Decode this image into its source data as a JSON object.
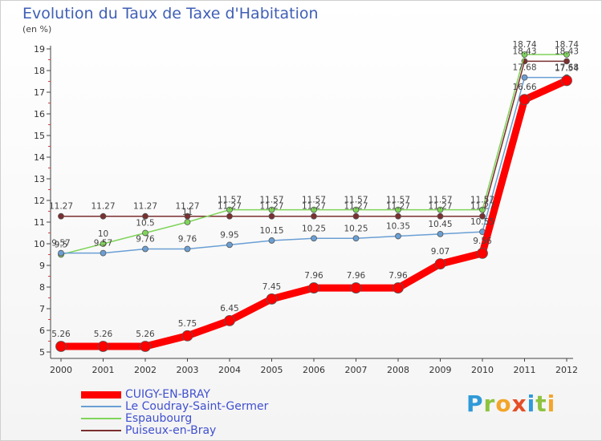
{
  "header": {
    "title": "Evolution du Taux de Taxe d'Habitation",
    "unit": "(en %)"
  },
  "brand": {
    "logo_letters": [
      "P",
      "r",
      "o",
      "x",
      "i",
      "t",
      "i"
    ],
    "logo_colors": [
      "#2f9ad8",
      "#8dc33e",
      "#f3a52a",
      "#e44f26",
      "#2f9ad8",
      "#8dc33e",
      "#f3a52a"
    ]
  },
  "chart_data": {
    "type": "line",
    "title": "Evolution du Taux de Taxe d'Habitation",
    "ylabel": "(en %)",
    "xlabel": "",
    "ylim": [
      5,
      19
    ],
    "yticks": [
      5,
      6,
      7,
      8,
      9,
      10,
      11,
      12,
      13,
      14,
      15,
      16,
      17,
      18,
      19
    ],
    "grid": false,
    "legend_position": "bottom-left",
    "x": [
      "2000",
      "2001",
      "2002",
      "2003",
      "2004",
      "2005",
      "2006",
      "2007",
      "2008",
      "2009",
      "2010",
      "2011",
      "2012"
    ],
    "series": [
      {
        "name": "Puiseux-en-Bray",
        "color": "#7b2f2f",
        "values": [
          11.27,
          11.27,
          11.27,
          11.27,
          11.27,
          11.27,
          11.27,
          11.27,
          11.27,
          11.27,
          11.27,
          18.43,
          18.43
        ],
        "labels": [
          "11.27",
          "11.27",
          "11.27",
          "11.27",
          "11.27",
          "11.27",
          "11.27",
          "11.27",
          "11.27",
          "11.27",
          "11.27",
          "18.43",
          "18.43"
        ]
      },
      {
        "name": "Espaubourg",
        "color": "#7fd45a",
        "values": [
          9.5,
          10,
          10.5,
          11,
          11.57,
          11.57,
          11.57,
          11.57,
          11.57,
          11.57,
          11.57,
          18.74,
          18.74
        ],
        "labels": [
          "9.5",
          "10",
          "10.5",
          "11",
          "11.57",
          "11.57",
          "11.57",
          "11.57",
          "11.57",
          "11.57",
          "11.57",
          "18.74",
          "18.74"
        ]
      },
      {
        "name": "Le Coudray-Saint-Germer",
        "color": "#6a9fd4",
        "values": [
          9.57,
          9.57,
          9.76,
          9.76,
          9.95,
          10.15,
          10.25,
          10.25,
          10.35,
          10.45,
          10.55,
          17.68,
          17.68
        ],
        "labels": [
          "9.57",
          "9.57",
          "9.76",
          "9.76",
          "9.95",
          "10.15",
          "10.25",
          "10.25",
          "10.35",
          "10.45",
          "10.55",
          "17.68",
          "17.68"
        ]
      },
      {
        "name": "CUIGY-EN-BRAY",
        "color": "#ff0000",
        "values": [
          5.26,
          5.26,
          5.26,
          5.75,
          6.45,
          7.45,
          7.96,
          7.96,
          7.96,
          9.07,
          9.56,
          16.66,
          17.54
        ],
        "labels": [
          "5.26",
          "5.26",
          "5.26",
          "5.75",
          "6.45",
          "7.45",
          "7.96",
          "7.96",
          "7.96",
          "9.07",
          "9.56",
          "16.66",
          "17.54"
        ]
      }
    ],
    "legend": [
      "CUIGY-EN-BRAY",
      "Le Coudray-Saint-Germer",
      "Espaubourg",
      "Puiseux-en-Bray"
    ]
  }
}
